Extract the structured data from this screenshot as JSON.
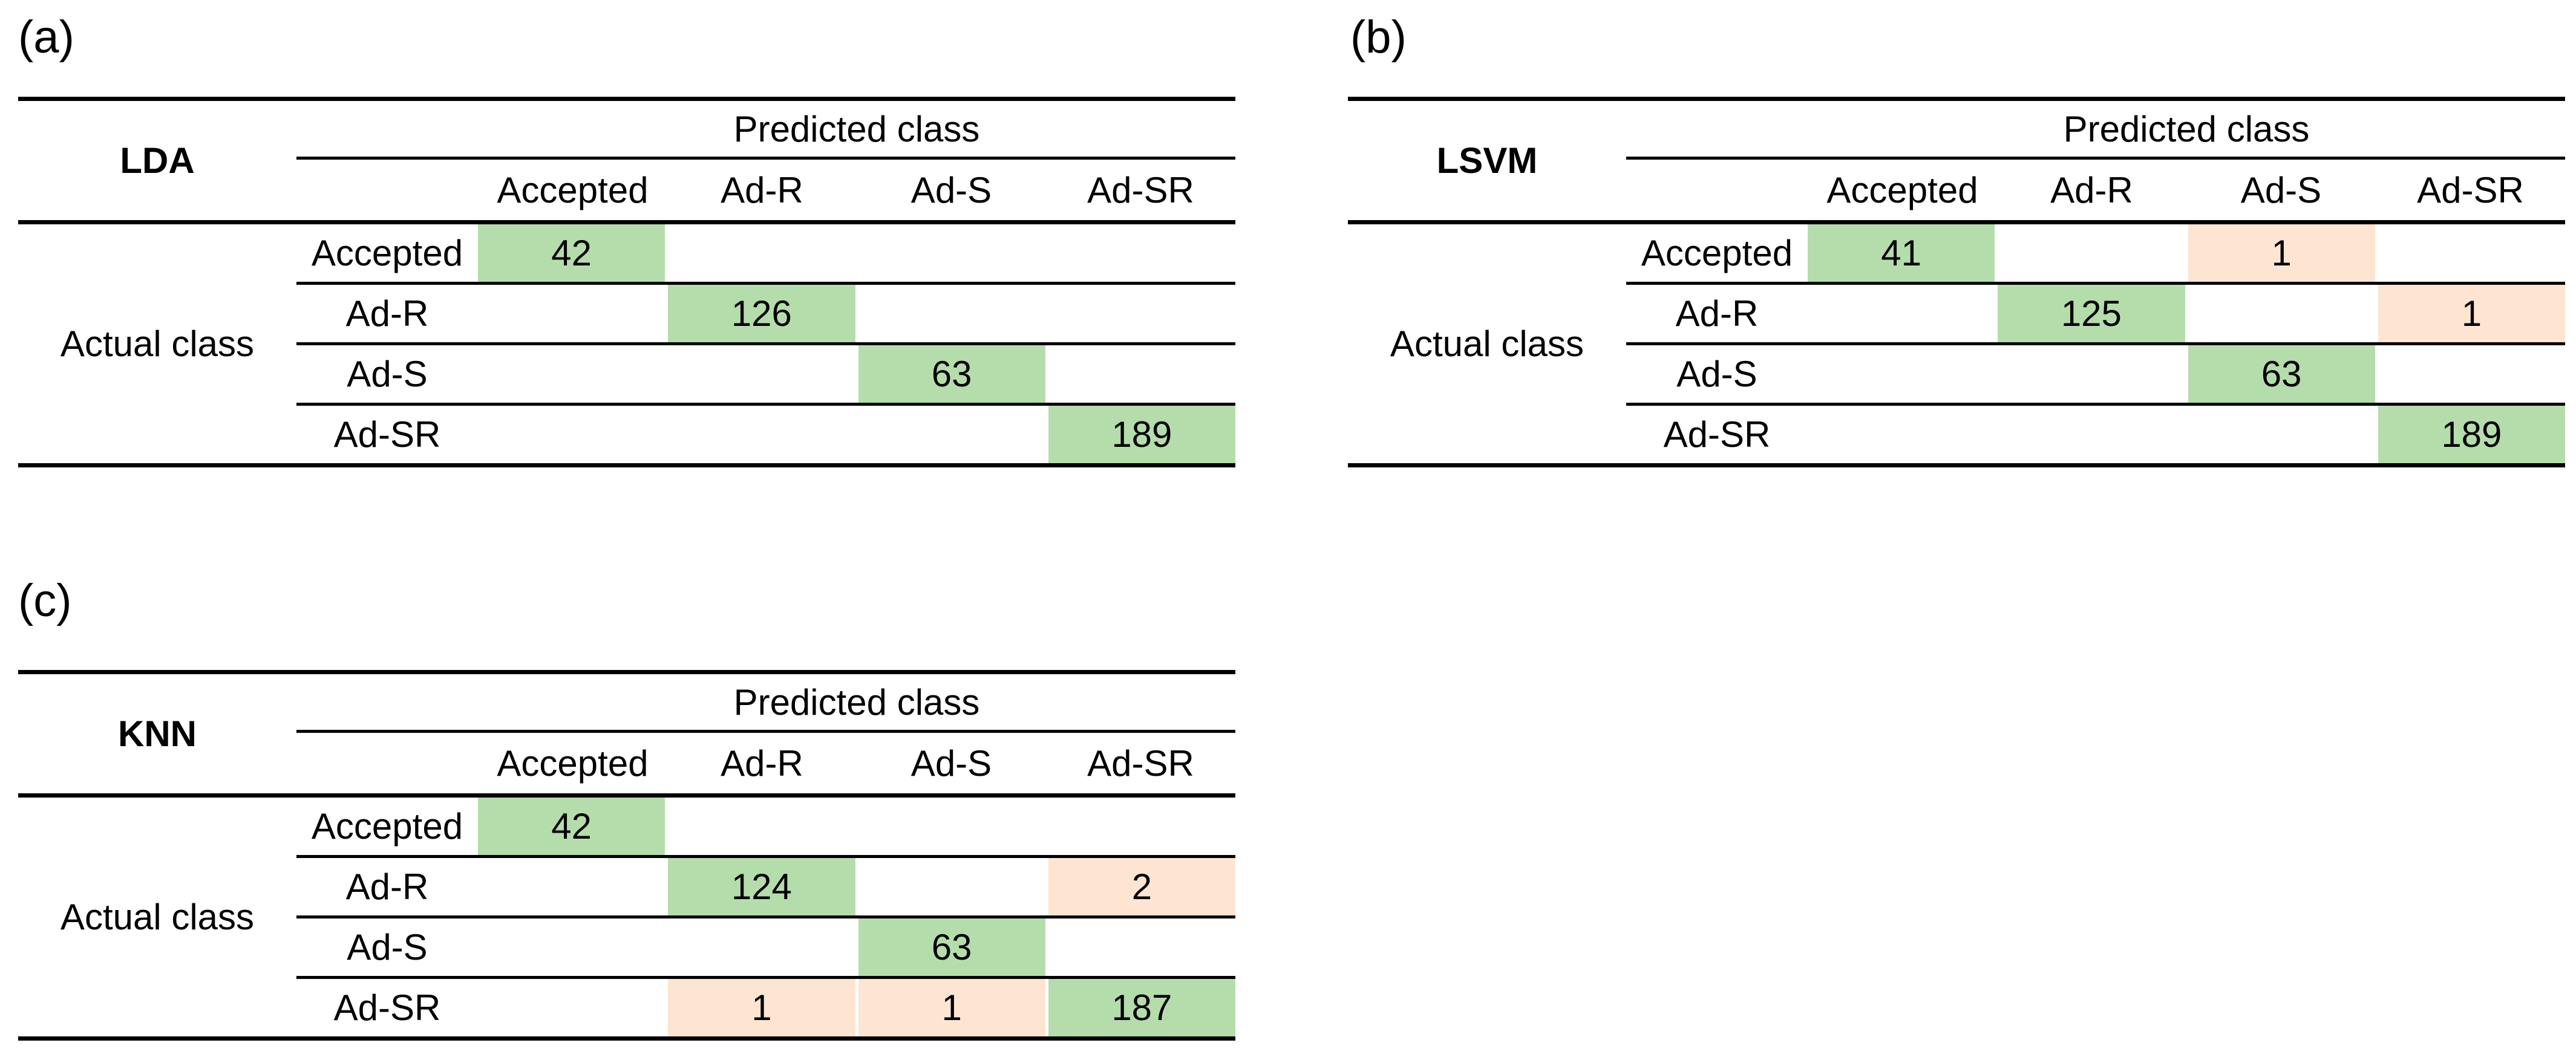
{
  "colors": {
    "correct_cell": "#b5ddab",
    "error_cell": "#fde5d2",
    "rule": "#000000"
  },
  "panels": [
    {
      "label": "(a)",
      "model": "LDA",
      "predicted_header": "Predicted class",
      "actual_header": "Actual class",
      "col_headers": [
        "Accepted",
        "Ad-R",
        "Ad-S",
        "Ad-SR"
      ],
      "row_headers": [
        "Accepted",
        "Ad-R",
        "Ad-S",
        "Ad-SR"
      ],
      "matrix": [
        [
          42,
          null,
          null,
          null
        ],
        [
          null,
          126,
          null,
          null
        ],
        [
          null,
          null,
          63,
          null
        ],
        [
          null,
          null,
          null,
          189
        ]
      ]
    },
    {
      "label": "(b)",
      "model": "LSVM",
      "predicted_header": "Predicted class",
      "actual_header": "Actual class",
      "col_headers": [
        "Accepted",
        "Ad-R",
        "Ad-S",
        "Ad-SR"
      ],
      "row_headers": [
        "Accepted",
        "Ad-R",
        "Ad-S",
        "Ad-SR"
      ],
      "matrix": [
        [
          41,
          null,
          1,
          null
        ],
        [
          null,
          125,
          null,
          1
        ],
        [
          null,
          null,
          63,
          null
        ],
        [
          null,
          null,
          null,
          189
        ]
      ]
    },
    {
      "label": "(c)",
      "model": "KNN",
      "predicted_header": "Predicted class",
      "actual_header": "Actual class",
      "col_headers": [
        "Accepted",
        "Ad-R",
        "Ad-S",
        "Ad-SR"
      ],
      "row_headers": [
        "Accepted",
        "Ad-R",
        "Ad-S",
        "Ad-SR"
      ],
      "matrix": [
        [
          42,
          null,
          null,
          null
        ],
        [
          null,
          124,
          null,
          2
        ],
        [
          null,
          null,
          63,
          null
        ],
        [
          null,
          1,
          1,
          187
        ]
      ]
    }
  ]
}
